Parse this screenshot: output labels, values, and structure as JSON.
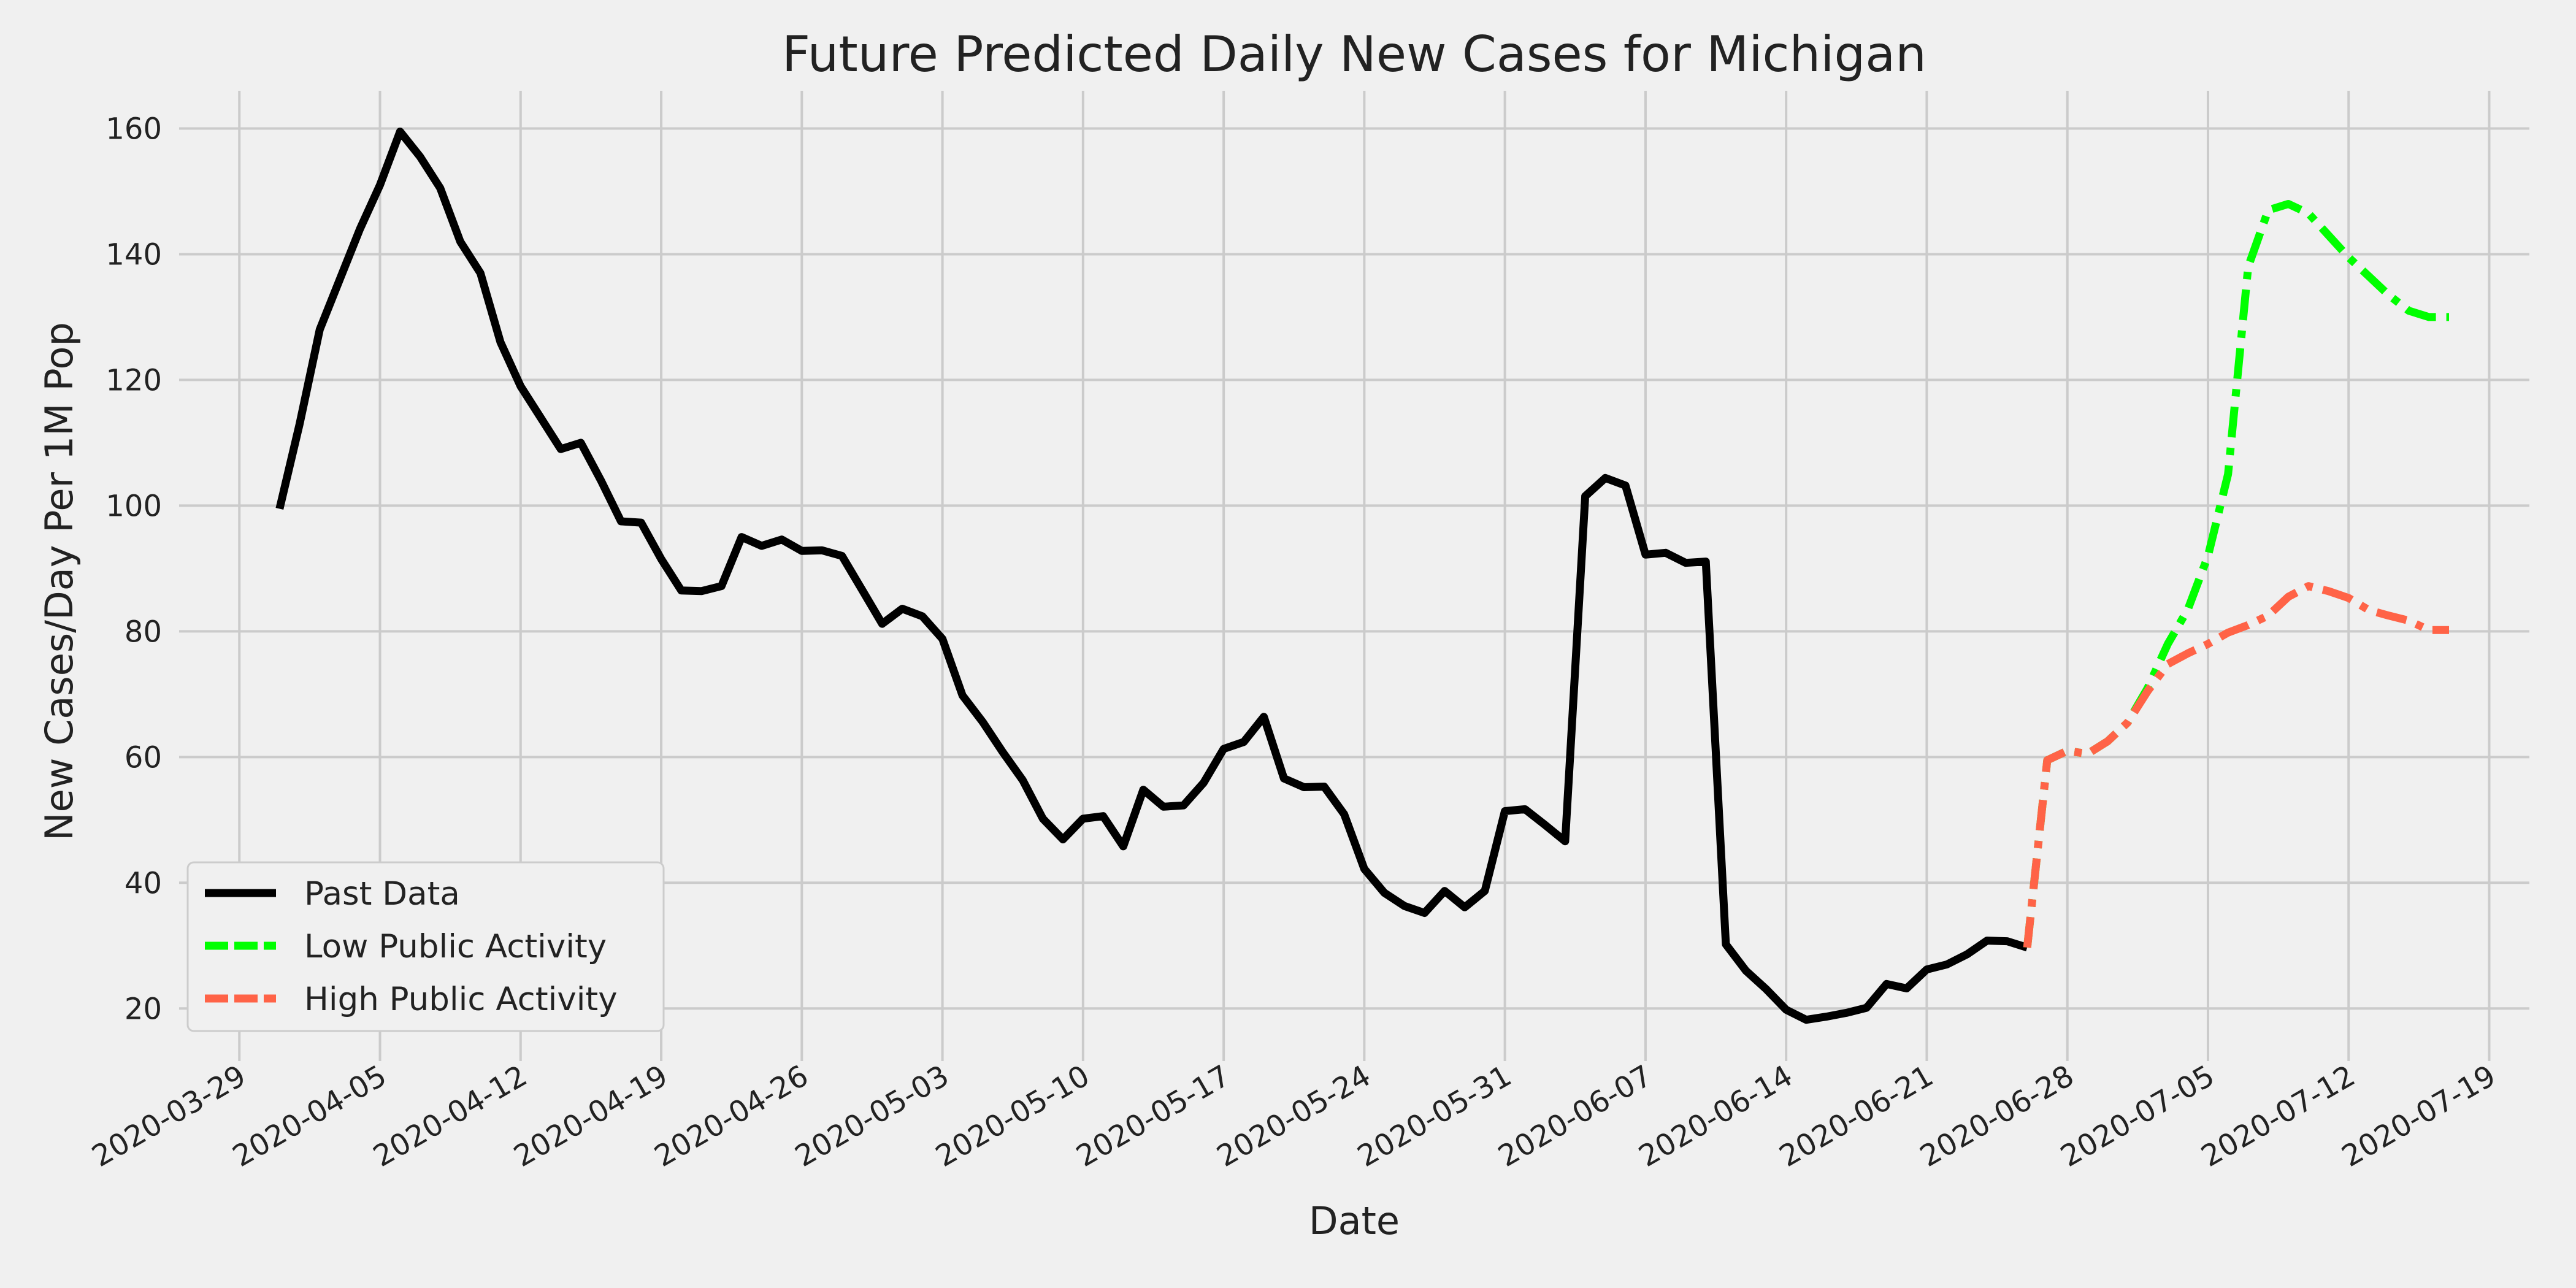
{
  "chart_data": {
    "type": "line",
    "title": "Future Predicted Daily New Cases for Michigan",
    "xlabel": "Date",
    "ylabel": "New Cases/Day Per 1M Pop",
    "x_ticks": [
      "2020-03-29",
      "2020-04-05",
      "2020-04-12",
      "2020-04-19",
      "2020-04-26",
      "2020-05-03",
      "2020-05-10",
      "2020-05-17",
      "2020-05-24",
      "2020-05-31",
      "2020-06-07",
      "2020-06-14",
      "2020-06-21",
      "2020-06-28",
      "2020-07-05",
      "2020-07-12",
      "2020-07-19"
    ],
    "y_ticks": [
      20,
      40,
      60,
      80,
      100,
      120,
      140,
      160
    ],
    "xlim": [
      "2020-03-26",
      "2020-07-21"
    ],
    "ylim": [
      13,
      166
    ],
    "grid": true,
    "legend_position": "lower-left",
    "colors": {
      "background": "#f0f0f0",
      "grid": "#cbcbcb"
    },
    "series": [
      {
        "name": "Past Data",
        "color": "#000000",
        "dash": "solid",
        "points": [
          [
            "2020-03-31",
            99.5
          ],
          [
            "2020-04-01",
            113
          ],
          [
            "2020-04-02",
            128
          ],
          [
            "2020-04-03",
            136
          ],
          [
            "2020-04-04",
            144
          ],
          [
            "2020-04-05",
            151
          ],
          [
            "2020-04-06",
            159.5
          ],
          [
            "2020-04-07",
            155.5
          ],
          [
            "2020-04-08",
            150.5
          ],
          [
            "2020-04-09",
            142
          ],
          [
            "2020-04-10",
            137
          ],
          [
            "2020-04-11",
            126
          ],
          [
            "2020-04-12",
            119
          ],
          [
            "2020-04-13",
            114
          ],
          [
            "2020-04-14",
            109
          ],
          [
            "2020-04-15",
            110
          ],
          [
            "2020-04-16",
            104
          ],
          [
            "2020-04-17",
            97.5
          ],
          [
            "2020-04-18",
            97.3
          ],
          [
            "2020-04-19",
            91.5
          ],
          [
            "2020-04-20",
            86.5
          ],
          [
            "2020-04-21",
            86.4
          ],
          [
            "2020-04-22",
            87.2
          ],
          [
            "2020-04-23",
            95
          ],
          [
            "2020-04-24",
            93.6
          ],
          [
            "2020-04-25",
            94.6
          ],
          [
            "2020-04-26",
            92.8
          ],
          [
            "2020-04-27",
            92.9
          ],
          [
            "2020-04-28",
            92
          ],
          [
            "2020-04-29",
            86.6
          ],
          [
            "2020-04-30",
            81.2
          ],
          [
            "2020-05-01",
            83.6
          ],
          [
            "2020-05-02",
            82.4
          ],
          [
            "2020-05-03",
            78.8
          ],
          [
            "2020-05-04",
            69.8
          ],
          [
            "2020-05-05",
            65.6
          ],
          [
            "2020-05-06",
            60.8
          ],
          [
            "2020-05-07",
            56.3
          ],
          [
            "2020-05-08",
            50.2
          ],
          [
            "2020-05-09",
            46.9
          ],
          [
            "2020-05-10",
            50.2
          ],
          [
            "2020-05-11",
            50.6
          ],
          [
            "2020-05-12",
            45.8
          ],
          [
            "2020-05-13",
            54.8
          ],
          [
            "2020-05-14",
            52.1
          ],
          [
            "2020-05-15",
            52.3
          ],
          [
            "2020-05-16",
            55.9
          ],
          [
            "2020-05-17",
            61.3
          ],
          [
            "2020-05-18",
            62.4
          ],
          [
            "2020-05-19",
            66.4
          ],
          [
            "2020-05-20",
            56.6
          ],
          [
            "2020-05-21",
            55.2
          ],
          [
            "2020-05-22",
            55.3
          ],
          [
            "2020-05-23",
            50.9
          ],
          [
            "2020-05-24",
            42.2
          ],
          [
            "2020-05-25",
            38.4
          ],
          [
            "2020-05-26",
            36.3
          ],
          [
            "2020-05-27",
            35.2
          ],
          [
            "2020-05-28",
            38.7
          ],
          [
            "2020-05-29",
            36.1
          ],
          [
            "2020-05-30",
            38.7
          ],
          [
            "2020-05-31",
            51.4
          ],
          [
            "2020-06-01",
            51.7
          ],
          [
            "2020-06-02",
            49.2
          ],
          [
            "2020-06-03",
            46.6
          ],
          [
            "2020-06-04",
            101.5
          ],
          [
            "2020-06-05",
            104.4
          ],
          [
            "2020-06-06",
            103.2
          ],
          [
            "2020-06-07",
            92.2
          ],
          [
            "2020-06-08",
            92.5
          ],
          [
            "2020-06-09",
            90.9
          ],
          [
            "2020-06-10",
            91.1
          ],
          [
            "2020-06-11",
            30.2
          ],
          [
            "2020-06-12",
            26
          ],
          [
            "2020-06-13",
            23.1
          ],
          [
            "2020-06-14",
            19.8
          ],
          [
            "2020-06-15",
            18.2
          ],
          [
            "2020-06-16",
            18.7
          ],
          [
            "2020-06-17",
            19.3
          ],
          [
            "2020-06-18",
            20.1
          ],
          [
            "2020-06-19",
            23.9
          ],
          [
            "2020-06-20",
            23.2
          ],
          [
            "2020-06-21",
            26.2
          ],
          [
            "2020-06-22",
            27
          ],
          [
            "2020-06-23",
            28.6
          ],
          [
            "2020-06-24",
            30.8
          ],
          [
            "2020-06-25",
            30.7
          ],
          [
            "2020-06-26",
            29.7
          ]
        ]
      },
      {
        "name": "Low Public Activity",
        "color": "#00ff00",
        "dash": "dashdot",
        "points": [
          [
            "2020-06-26",
            29.7
          ],
          [
            "2020-06-27",
            59.5
          ],
          [
            "2020-06-28",
            61
          ],
          [
            "2020-06-29",
            60.5
          ],
          [
            "2020-06-30",
            62.5
          ],
          [
            "2020-07-01",
            65.5
          ],
          [
            "2020-07-02",
            71
          ],
          [
            "2020-07-03",
            78
          ],
          [
            "2020-07-04",
            83.5
          ],
          [
            "2020-07-05",
            92
          ],
          [
            "2020-07-06",
            105
          ],
          [
            "2020-07-07",
            138
          ],
          [
            "2020-07-08",
            147
          ],
          [
            "2020-07-09",
            148
          ],
          [
            "2020-07-10",
            146.5
          ],
          [
            "2020-07-11",
            143
          ],
          [
            "2020-07-12",
            139.5
          ],
          [
            "2020-07-13",
            136.5
          ],
          [
            "2020-07-14",
            133.5
          ],
          [
            "2020-07-15",
            131
          ],
          [
            "2020-07-16",
            130
          ],
          [
            "2020-07-17",
            130
          ]
        ]
      },
      {
        "name": "High Public Activity",
        "color": "#ff6347",
        "dash": "dashdot",
        "points": [
          [
            "2020-06-26",
            29.7
          ],
          [
            "2020-06-27",
            59.5
          ],
          [
            "2020-06-28",
            61
          ],
          [
            "2020-06-29",
            60.5
          ],
          [
            "2020-06-30",
            62.5
          ],
          [
            "2020-07-01",
            65.5
          ],
          [
            "2020-07-02",
            70.5
          ],
          [
            "2020-07-03",
            74.8
          ],
          [
            "2020-07-04",
            76.5
          ],
          [
            "2020-07-05",
            78
          ],
          [
            "2020-07-06",
            79.8
          ],
          [
            "2020-07-07",
            81
          ],
          [
            "2020-07-08",
            82.5
          ],
          [
            "2020-07-09",
            85.5
          ],
          [
            "2020-07-10",
            87.2
          ],
          [
            "2020-07-11",
            86.4
          ],
          [
            "2020-07-12",
            85.3
          ],
          [
            "2020-07-13",
            83.4
          ],
          [
            "2020-07-14",
            82.5
          ],
          [
            "2020-07-15",
            81.7
          ],
          [
            "2020-07-16",
            80.2
          ],
          [
            "2020-07-17",
            80.2
          ]
        ]
      }
    ]
  }
}
